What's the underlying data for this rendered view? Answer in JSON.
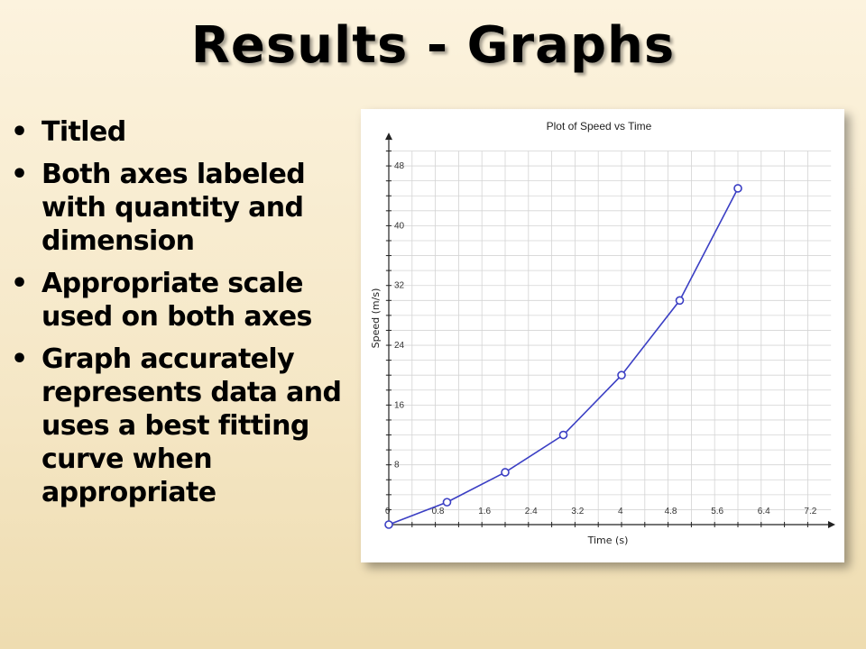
{
  "slide": {
    "title": "Results - Graphs",
    "bullets": [
      "Titled",
      "Both axes labeled with quantity and dimension",
      "Appropriate scale used on both axes",
      "Graph accurately represents data and uses a best fitting curve when appropriate"
    ],
    "bullet_symbol": "•"
  },
  "chart_data": {
    "type": "line",
    "title": "Plot of Speed vs Time",
    "xlabel": "Time (s)",
    "ylabel": "Speed (m/s)",
    "xlim": [
      0,
      7.2
    ],
    "ylim": [
      0,
      48
    ],
    "x_ticks": [
      "0",
      "0.8",
      "1.6",
      "2.4",
      "3.2",
      "4",
      "4.8",
      "5.6",
      "6.4",
      "7.2"
    ],
    "y_ticks": [
      "8",
      "16",
      "24",
      "32",
      "40",
      "48"
    ],
    "grid": true,
    "series": [
      {
        "x": [
          0,
          1,
          2,
          3,
          4,
          5,
          6
        ],
        "y": [
          0,
          3,
          7,
          12,
          20,
          30,
          45
        ]
      }
    ],
    "line_color": "#3b3fc4",
    "grid_color": "#d4d4d4"
  }
}
